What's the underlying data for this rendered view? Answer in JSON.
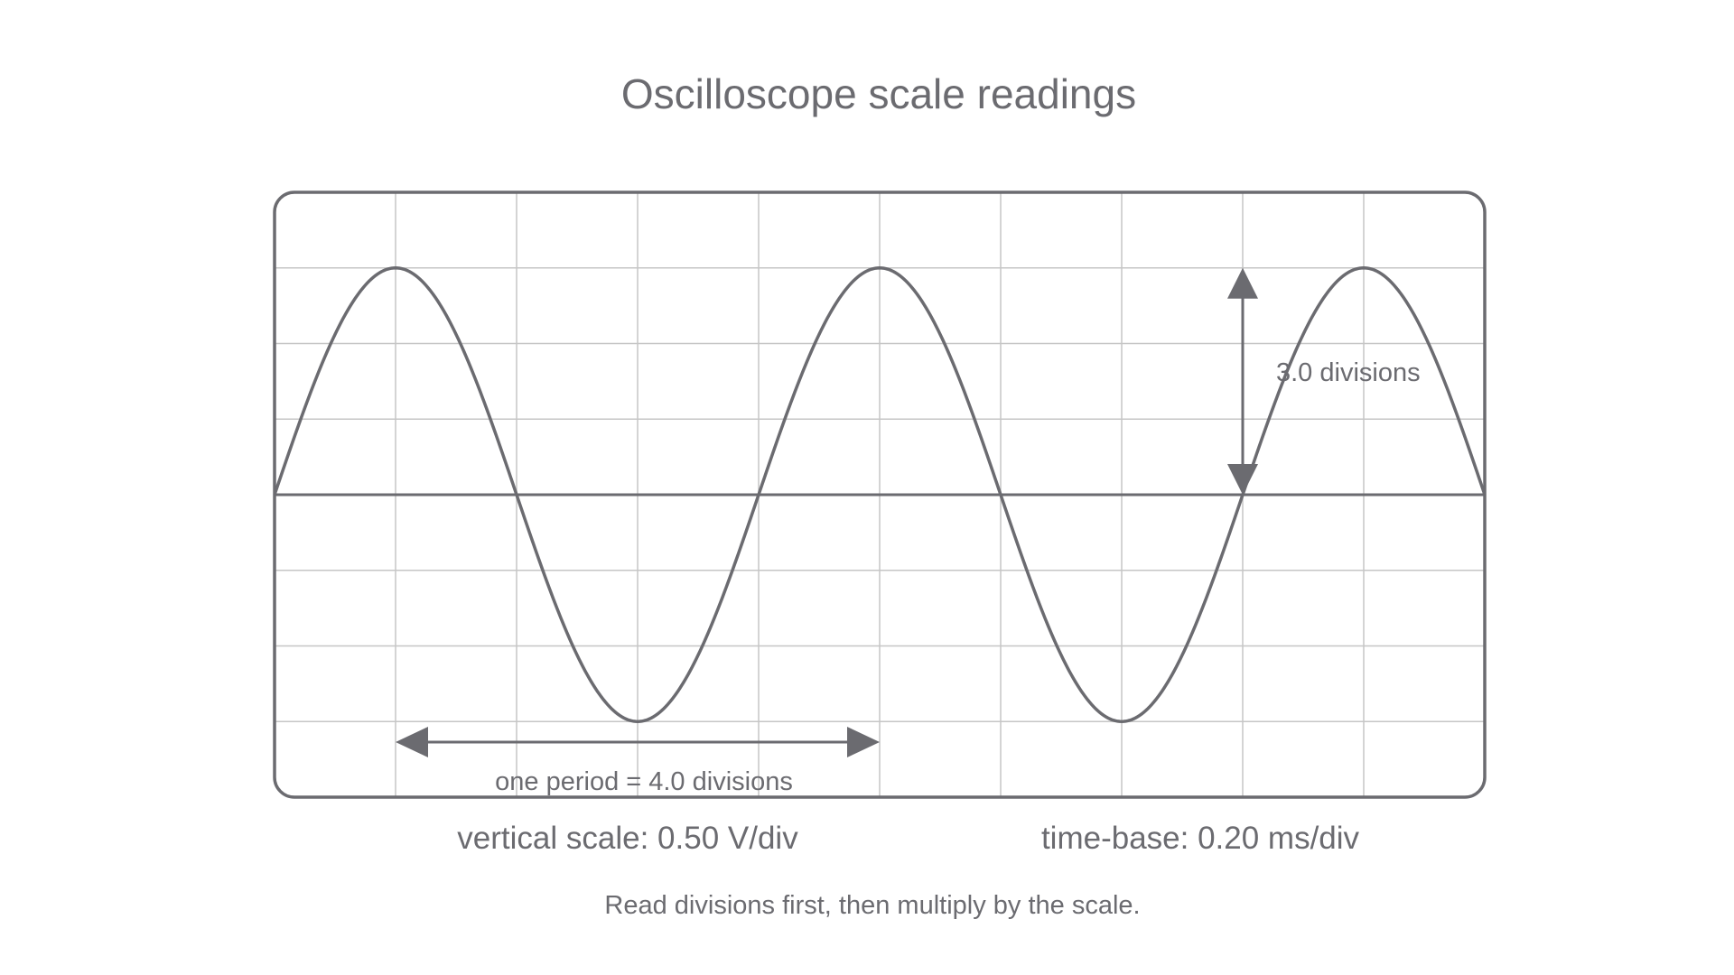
{
  "title": "Oscilloscope scale readings",
  "screen": {
    "horizontal_divisions": 10,
    "vertical_divisions": 8,
    "wave_amplitude_div": 3.0,
    "wave_period_div": 4.0,
    "wave_phase": "sine-from-left-edge"
  },
  "annotations": {
    "amplitude_label": "3.0 divisions",
    "period_label": "one period = 4.0 divisions"
  },
  "scales": {
    "vertical": "vertical scale: 0.50 V/div",
    "timebase": "time-base: 0.20 ms/div"
  },
  "hint": "Read divisions first, then multiply by the scale.",
  "colors": {
    "ink": "#6b6b70",
    "grid": "#c6c6c6"
  }
}
